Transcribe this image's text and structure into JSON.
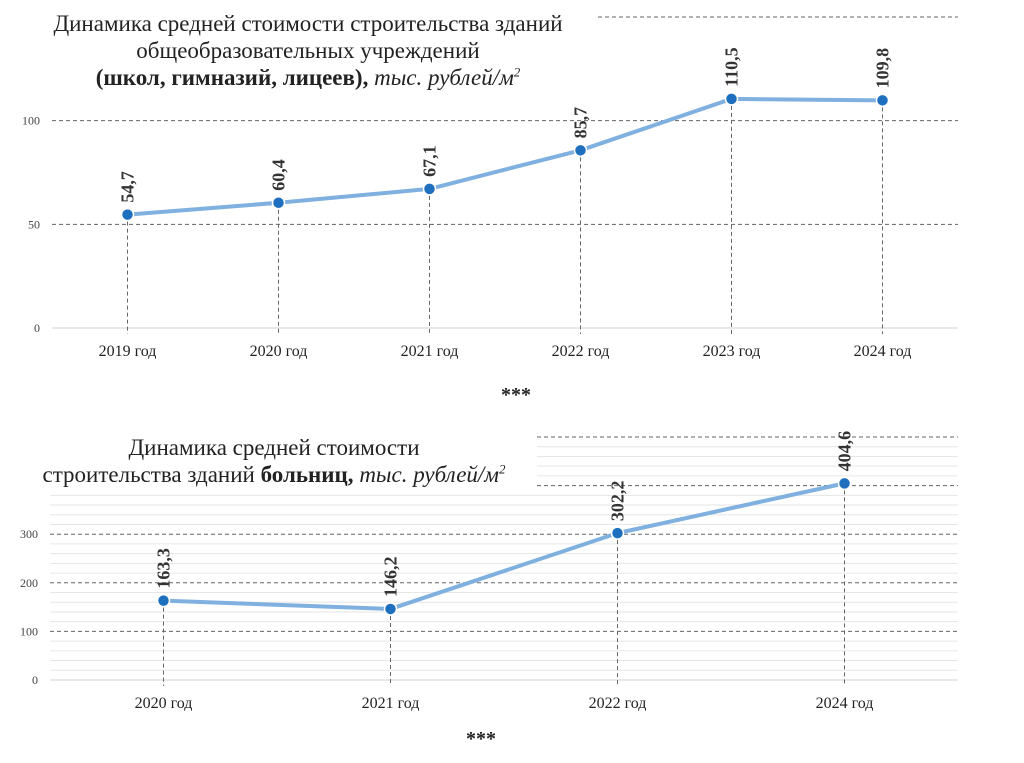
{
  "chart_data": [
    {
      "type": "line",
      "title_lines": [
        "Динамика средней стоимости строительства зданий",
        "общеобразовательных учреждений"
      ],
      "title_bold": "(школ, гимназий, лицеев),",
      "title_unit": "тыс. рублей/м",
      "title_sup": "2",
      "categories": [
        "2019 год",
        "2020 год",
        "2021 год",
        "2022 год",
        "2023 год",
        "2024 год"
      ],
      "values": [
        54.7,
        60.4,
        67.1,
        85.7,
        110.5,
        109.8
      ],
      "data_labels": [
        "54,7",
        "60,4",
        "67,1",
        "85,7",
        "110,5",
        "109,8"
      ],
      "y_ticks": [
        "0",
        "50",
        "100"
      ],
      "ylim": [
        0,
        150
      ],
      "grid": true,
      "line_color": "#7fb0df",
      "marker_color": "#1f6fbf"
    },
    {
      "type": "line",
      "title_line1": "Динамика средней стоимости",
      "title_line2_plain": "строительства зданий ",
      "title_bold": "больниц,",
      "title_unit": "тыс. рублей/м",
      "title_sup": "2",
      "categories": [
        "2020 год",
        "2021 год",
        "2022 год",
        "2024 год"
      ],
      "values": [
        163.3,
        146.2,
        302.2,
        404.6
      ],
      "data_labels": [
        "163,3",
        "146,2",
        "302,2",
        "404,6"
      ],
      "y_ticks": [
        "0",
        "100",
        "200",
        "300"
      ],
      "ylim": [
        0,
        500
      ],
      "grid": true,
      "line_color": "#7fb0df",
      "marker_color": "#1f6fbf"
    }
  ],
  "separators": [
    "***",
    "***"
  ]
}
